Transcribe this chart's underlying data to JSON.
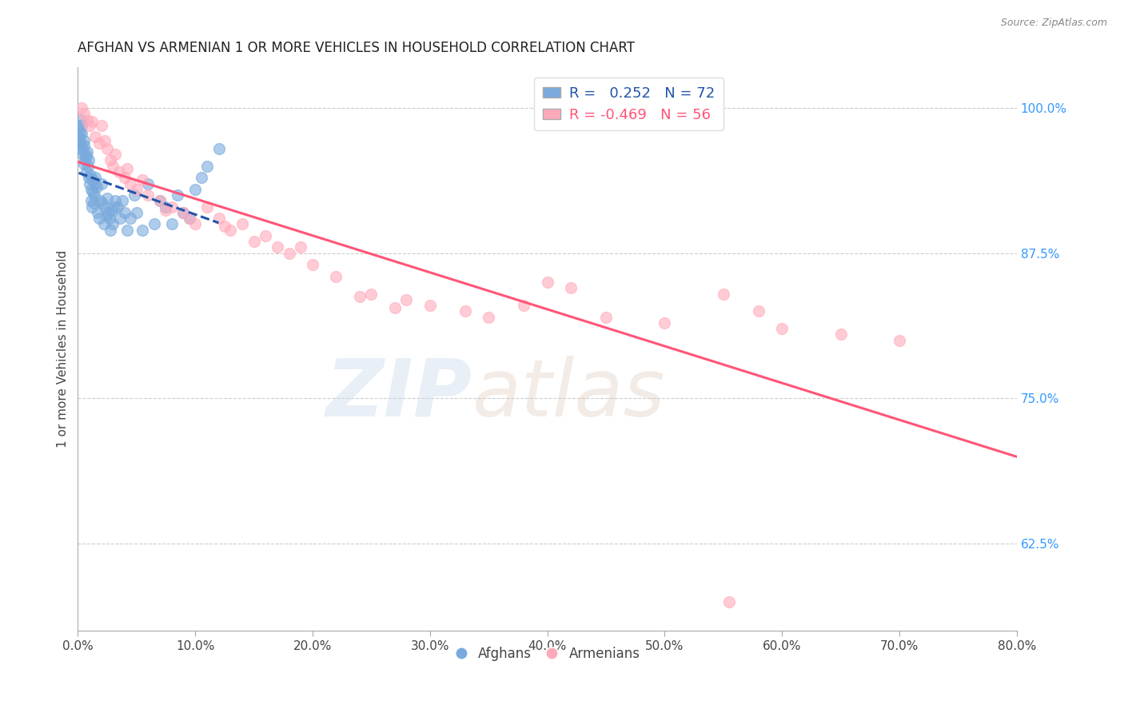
{
  "title": "AFGHAN VS ARMENIAN 1 OR MORE VEHICLES IN HOUSEHOLD CORRELATION CHART",
  "source": "Source: ZipAtlas.com",
  "ylabel": "1 or more Vehicles in Household",
  "x_ticklabels": [
    "0.0%",
    "10.0%",
    "20.0%",
    "30.0%",
    "40.0%",
    "50.0%",
    "60.0%",
    "70.0%",
    "80.0%"
  ],
  "x_ticks": [
    0.0,
    10.0,
    20.0,
    30.0,
    40.0,
    50.0,
    60.0,
    70.0,
    80.0
  ],
  "y_ticklabels_right": [
    "100.0%",
    "87.5%",
    "75.0%",
    "62.5%"
  ],
  "y_ticks_right": [
    100.0,
    87.5,
    75.0,
    62.5
  ],
  "xlim": [
    0.0,
    80.0
  ],
  "ylim": [
    55.0,
    103.5
  ],
  "legend_afghan": "R =   0.252   N = 72",
  "legend_armenian": "R = -0.469   N = 56",
  "afghan_color": "#7aaadd",
  "armenian_color": "#ffaabb",
  "afghan_line_color": "#2255aa",
  "armenian_line_color": "#ff5577",
  "watermark_zip": "ZIP",
  "watermark_atlas": "atlas",
  "afghan_x": [
    0.1,
    0.15,
    0.2,
    0.25,
    0.3,
    0.35,
    0.4,
    0.5,
    0.55,
    0.6,
    0.65,
    0.7,
    0.75,
    0.8,
    0.85,
    0.9,
    0.95,
    1.0,
    1.05,
    1.1,
    1.15,
    1.2,
    1.3,
    1.4,
    1.5,
    1.6,
    1.7,
    1.8,
    1.9,
    2.0,
    2.1,
    2.2,
    2.3,
    2.4,
    2.5,
    2.6,
    2.7,
    2.8,
    2.9,
    3.0,
    3.1,
    3.2,
    3.4,
    3.6,
    3.8,
    4.0,
    4.2,
    4.5,
    4.8,
    5.0,
    5.5,
    6.0,
    6.5,
    7.0,
    7.5,
    8.0,
    8.5,
    9.0,
    9.5,
    10.0,
    10.5,
    11.0,
    12.0,
    0.45,
    0.55,
    1.25,
    1.35,
    1.45,
    0.08,
    0.12,
    0.18,
    0.22
  ],
  "afghan_y": [
    97.5,
    98.0,
    97.0,
    99.0,
    98.5,
    97.8,
    96.5,
    97.2,
    96.8,
    95.5,
    96.0,
    94.5,
    95.8,
    96.2,
    95.0,
    94.0,
    95.5,
    93.5,
    94.2,
    92.0,
    93.0,
    91.5,
    93.8,
    92.5,
    94.0,
    93.2,
    91.0,
    90.5,
    92.0,
    93.5,
    91.8,
    90.0,
    91.5,
    90.8,
    92.2,
    91.0,
    90.5,
    89.5,
    91.2,
    90.0,
    91.5,
    92.0,
    91.5,
    90.5,
    92.0,
    91.0,
    89.5,
    90.5,
    92.5,
    91.0,
    89.5,
    93.5,
    90.0,
    92.0,
    91.5,
    90.0,
    92.5,
    91.0,
    90.5,
    93.0,
    94.0,
    95.0,
    96.5,
    96.0,
    95.2,
    92.8,
    91.8,
    93.5,
    98.5,
    97.5,
    97.0,
    96.5
  ],
  "armenian_x": [
    0.3,
    0.5,
    0.8,
    1.0,
    1.2,
    1.5,
    1.8,
    2.0,
    2.3,
    2.5,
    2.8,
    3.0,
    3.5,
    4.0,
    4.5,
    5.0,
    6.0,
    7.0,
    8.0,
    9.0,
    10.0,
    11.0,
    12.0,
    13.0,
    14.0,
    15.0,
    16.0,
    17.0,
    18.0,
    20.0,
    22.0,
    25.0,
    28.0,
    30.0,
    33.0,
    35.0,
    38.0,
    40.0,
    42.0,
    45.0,
    50.0,
    55.0,
    58.0,
    60.0,
    65.0,
    70.0,
    3.2,
    4.2,
    5.5,
    7.5,
    9.5,
    12.5,
    19.0,
    24.0,
    27.0,
    55.5
  ],
  "armenian_y": [
    100.0,
    99.5,
    99.0,
    98.5,
    98.8,
    97.5,
    97.0,
    98.5,
    97.2,
    96.5,
    95.5,
    95.0,
    94.5,
    94.0,
    93.5,
    93.0,
    92.5,
    92.0,
    91.5,
    91.0,
    90.0,
    91.5,
    90.5,
    89.5,
    90.0,
    88.5,
    89.0,
    88.0,
    87.5,
    86.5,
    85.5,
    84.0,
    83.5,
    83.0,
    82.5,
    82.0,
    83.0,
    85.0,
    84.5,
    82.0,
    81.5,
    84.0,
    82.5,
    81.0,
    80.5,
    80.0,
    96.0,
    94.8,
    93.8,
    91.2,
    90.5,
    89.8,
    88.0,
    83.8,
    82.8,
    57.5
  ]
}
